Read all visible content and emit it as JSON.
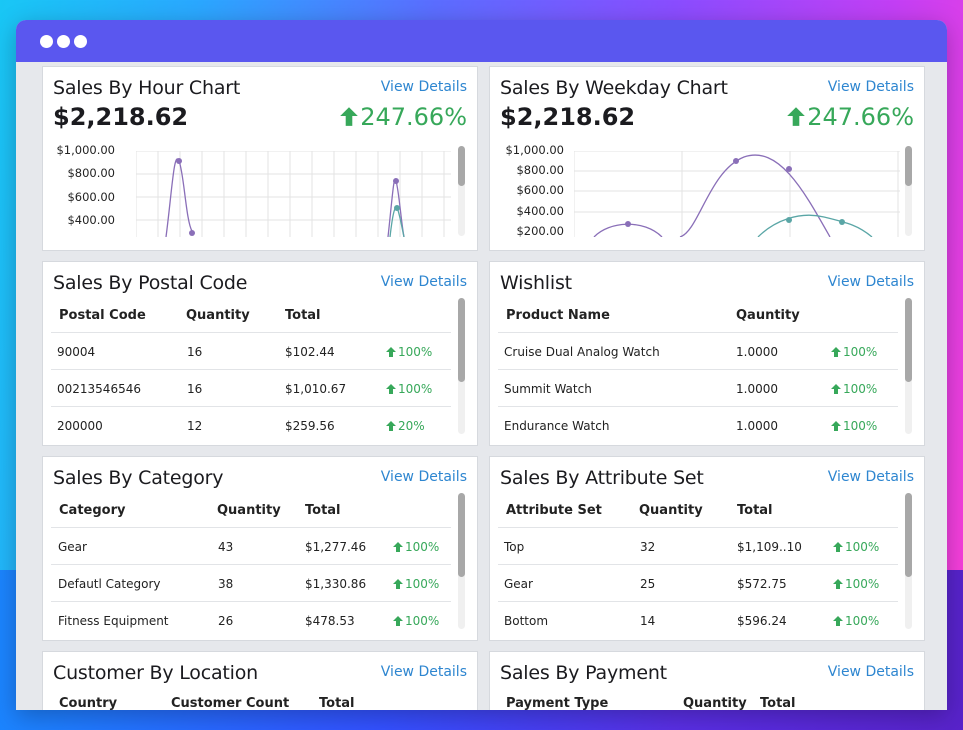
{
  "window": {
    "titlebar_dots": 3
  },
  "hour_chart": {
    "title": "Sales By Hour Chart",
    "view_details": "View Details",
    "amount": "$2,218.62",
    "growth": "247.66%",
    "y_ticks": [
      "$1,000.00",
      "$800.00",
      "$600.00",
      "$400.00"
    ],
    "colors": {
      "series1": "#8a6fb8",
      "series2": "#5aa6a6",
      "grid": "#e3e3e3",
      "growth": "#37a85a"
    }
  },
  "weekday_chart": {
    "title": "Sales By Weekday Chart",
    "view_details": "View Details",
    "amount": "$2,218.62",
    "growth": "247.66%",
    "y_ticks": [
      "$1,000.00",
      "$800.00",
      "$600.00",
      "$400.00",
      "$200.00"
    ]
  },
  "postal": {
    "title": "Sales By Postal Code",
    "view_details": "View Details",
    "headers": [
      "Postal Code",
      "Quantity",
      "Total"
    ],
    "rows": [
      {
        "c1": "90004",
        "c2": "16",
        "c3": "$102.44",
        "pct": "100%"
      },
      {
        "c1": "00213546546",
        "c2": "16",
        "c3": "$1,010.67",
        "pct": "100%"
      },
      {
        "c1": "200000",
        "c2": "12",
        "c3": "$259.56",
        "pct": "20%"
      }
    ]
  },
  "wishlist": {
    "title": "Wishlist",
    "view_details": "View Details",
    "headers": [
      "Product Name",
      "Qauntity"
    ],
    "rows": [
      {
        "c1": "Cruise Dual Analog Watch",
        "c2": "1.0000",
        "pct": "100%"
      },
      {
        "c1": "Summit Watch",
        "c2": "1.0000",
        "pct": "100%"
      },
      {
        "c1": "Endurance Watch",
        "c2": "1.0000",
        "pct": "100%"
      }
    ]
  },
  "category": {
    "title": "Sales By Category",
    "view_details": "View Details",
    "headers": [
      "Category",
      "Quantity",
      "Total"
    ],
    "rows": [
      {
        "c1": "Gear",
        "c2": "43",
        "c3": "$1,277.46",
        "pct": "100%"
      },
      {
        "c1": "Defautl Category",
        "c2": "38",
        "c3": "$1,330.86",
        "pct": "100%"
      },
      {
        "c1": "Fitness Equipment",
        "c2": "26",
        "c3": "$478.53",
        "pct": "100%"
      }
    ]
  },
  "attribute": {
    "title": "Sales By Attribute Set",
    "view_details": "View Details",
    "headers": [
      "Attribute Set",
      "Quantity",
      "Total"
    ],
    "rows": [
      {
        "c1": "Top",
        "c2": "32",
        "c3": "$1,109..10",
        "pct": "100%"
      },
      {
        "c1": "Gear",
        "c2": "25",
        "c3": "$572.75",
        "pct": "100%"
      },
      {
        "c1": "Bottom",
        "c2": "14",
        "c3": "$596.24",
        "pct": "100%"
      }
    ]
  },
  "location": {
    "title": "Customer By Location",
    "view_details": "View Details",
    "headers": [
      "Country",
      "Customer Count",
      "Total"
    ]
  },
  "payment": {
    "title": "Sales By Payment",
    "view_details": "View Details",
    "headers": [
      "Payment Type",
      "Quantity",
      "Total"
    ]
  }
}
